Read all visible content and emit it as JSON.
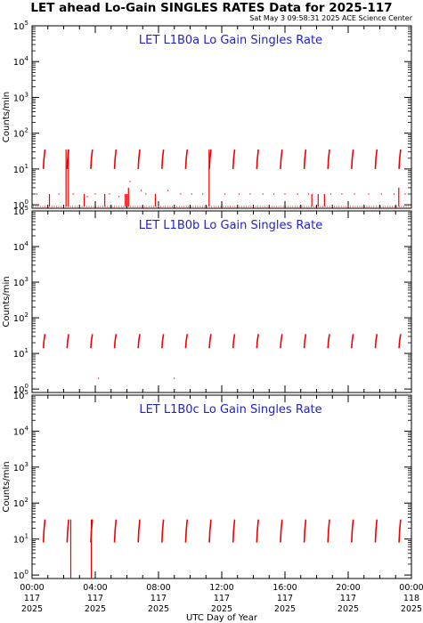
{
  "header": {
    "title": "LET ahead Lo-Gain SINGLES RATES Data for 2025-117",
    "timestamp": "Sat May  3 09:58:31 2025 ACE Science Center"
  },
  "colors": {
    "data": "#ee0000",
    "panel_title": "#2222cc",
    "axes": "#000000"
  },
  "chart_data": [
    {
      "type": "scatter",
      "title": "LET L1B0a Lo Gain Singles Rate",
      "ylabel": "Counts/min",
      "yscale": "log",
      "ylim": [
        0.8,
        100000
      ],
      "xlim": [
        0,
        24
      ],
      "yticks": [
        {
          "v": 1,
          "e": "0"
        },
        {
          "v": 10,
          "e": "1"
        },
        {
          "v": 100,
          "e": "2"
        },
        {
          "v": 1000,
          "e": "3"
        },
        {
          "v": 10000,
          "e": "4"
        },
        {
          "v": 100000,
          "e": "5"
        }
      ],
      "bursts": [
        0.75,
        2.25,
        3.75,
        5.25,
        6.75,
        8.25,
        9.75,
        11.25,
        12.75,
        14.25,
        15.75,
        17.25,
        18.75,
        20.25,
        21.75,
        23.25
      ],
      "burst_range": [
        10,
        35
      ],
      "spikes": [
        [
          1.1,
          0.9,
          2
        ],
        [
          2.15,
          0.9,
          35
        ],
        [
          2.3,
          0.9,
          35
        ],
        [
          3.3,
          0.9,
          2
        ],
        [
          4.6,
          0.9,
          2
        ],
        [
          5.9,
          0.9,
          2
        ],
        [
          6.0,
          0.9,
          2
        ],
        [
          6.1,
          0.9,
          3
        ],
        [
          7.8,
          0.9,
          2
        ],
        [
          11.2,
          0.9,
          35
        ],
        [
          17.7,
          0.9,
          2
        ],
        [
          18.1,
          0.9,
          2
        ],
        [
          18.5,
          0.9,
          2
        ],
        [
          23.2,
          0.9,
          3
        ]
      ],
      "dots": [
        [
          0.3,
          2
        ],
        [
          1.7,
          2
        ],
        [
          2.6,
          2
        ],
        [
          3.5,
          1.7
        ],
        [
          4.0,
          2
        ],
        [
          4.9,
          2
        ],
        [
          5.5,
          1.7
        ],
        [
          6.2,
          4.5
        ],
        [
          6.9,
          2.5
        ],
        [
          7.2,
          2
        ],
        [
          8.6,
          2.5
        ],
        [
          9.4,
          2
        ],
        [
          10.1,
          2
        ],
        [
          10.8,
          2
        ],
        [
          12.2,
          2
        ],
        [
          13.1,
          2
        ],
        [
          13.8,
          2
        ],
        [
          14.6,
          2
        ],
        [
          15.3,
          2
        ],
        [
          16.0,
          2
        ],
        [
          16.8,
          2
        ],
        [
          17.5,
          2
        ],
        [
          18.9,
          2
        ],
        [
          19.6,
          2
        ],
        [
          20.4,
          2
        ],
        [
          21.3,
          2
        ],
        [
          22.1,
          2
        ],
        [
          22.9,
          2
        ],
        [
          23.6,
          2
        ]
      ],
      "floor": 0.9
    },
    {
      "type": "scatter",
      "title": "LET L1B0b Lo Gain Singles Rate",
      "ylabel": "Counts/min",
      "yscale": "log",
      "ylim": [
        0.8,
        100000
      ],
      "xlim": [
        0,
        24
      ],
      "yticks": [
        {
          "v": 1,
          "e": "0"
        },
        {
          "v": 10,
          "e": "1"
        },
        {
          "v": 100,
          "e": "2"
        },
        {
          "v": 1000,
          "e": "3"
        },
        {
          "v": 10000,
          "e": "4"
        },
        {
          "v": 100000,
          "e": "5"
        }
      ],
      "bursts": [
        0.75,
        2.25,
        3.75,
        5.25,
        6.75,
        8.25,
        9.75,
        11.25,
        12.75,
        14.25,
        15.75,
        17.25,
        18.75,
        20.25,
        21.75,
        23.25
      ],
      "burst_range": [
        14,
        35
      ],
      "spikes": [],
      "dots": [
        [
          4.2,
          2
        ],
        [
          9.0,
          2
        ]
      ],
      "floor": null
    },
    {
      "type": "scatter",
      "title": "LET L1B0c Lo Gain Singles Rate",
      "ylabel": "Counts/min",
      "yscale": "log",
      "ylim": [
        0.8,
        100000
      ],
      "xlim": [
        0,
        24
      ],
      "yticks": [
        {
          "v": 1,
          "e": "0"
        },
        {
          "v": 10,
          "e": "1"
        },
        {
          "v": 100,
          "e": "2"
        },
        {
          "v": 1000,
          "e": "3"
        },
        {
          "v": 10000,
          "e": "4"
        },
        {
          "v": 100000,
          "e": "5"
        }
      ],
      "bursts": [
        0.75,
        2.25,
        3.75,
        5.25,
        6.75,
        8.25,
        9.75,
        11.25,
        12.75,
        14.25,
        15.75,
        17.25,
        18.75,
        20.25,
        21.75,
        23.25
      ],
      "burst_range": [
        8,
        35
      ],
      "spikes": [
        [
          2.45,
          0.8,
          35
        ],
        [
          3.75,
          0.8,
          35
        ]
      ],
      "dots": [],
      "floor": null
    }
  ],
  "xaxis": {
    "label": "UTC Day of Year",
    "major_ticks": [
      {
        "x": 0,
        "time": "00:00",
        "doy": "117",
        "year": "2025"
      },
      {
        "x": 4,
        "time": "04:00",
        "doy": "117",
        "year": "2025"
      },
      {
        "x": 8,
        "time": "08:00",
        "doy": "117",
        "year": "2025"
      },
      {
        "x": 12,
        "time": "12:00",
        "doy": "117",
        "year": "2025"
      },
      {
        "x": 16,
        "time": "16:00",
        "doy": "117",
        "year": "2025"
      },
      {
        "x": 20,
        "time": "20:00",
        "doy": "117",
        "year": "2025"
      },
      {
        "x": 24,
        "time": "00:00",
        "doy": "118",
        "year": "2025"
      }
    ]
  }
}
